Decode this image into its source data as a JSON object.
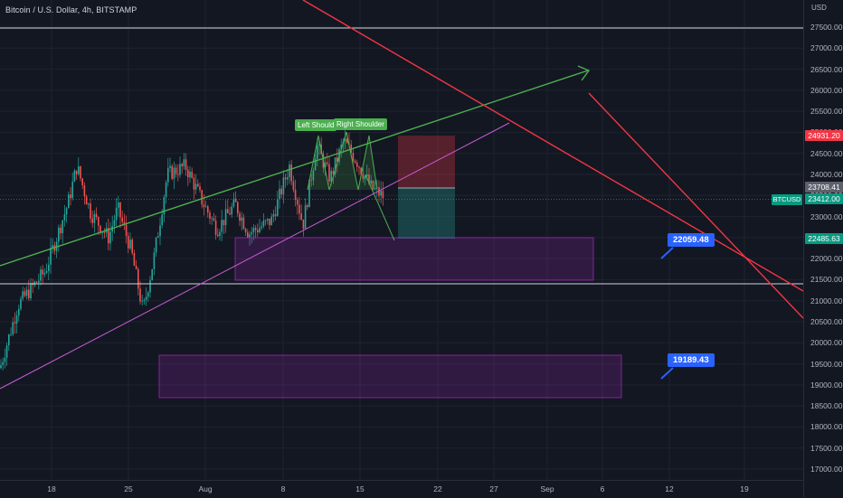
{
  "symbol": {
    "title": "Bitcoin / U.S. Dollar, 4h, BITSTAMP",
    "ticker": "BTCUSD"
  },
  "axis": {
    "currency": "USD",
    "y_ticks": [
      "27500.00",
      "27000.00",
      "26500.00",
      "26000.00",
      "25500.00",
      "25000.00",
      "24500.00",
      "24000.00",
      "23500.00",
      "23000.00",
      "22500.00",
      "22000.00",
      "21500.00",
      "21000.00",
      "20500.00",
      "20000.00",
      "19500.00",
      "19000.00",
      "18500.00",
      "18000.00",
      "17500.00",
      "17000.00"
    ],
    "x_ticks": [
      "18",
      "25",
      "Aug",
      "8",
      "15",
      "22",
      "27",
      "Sep",
      "6",
      "12",
      "19"
    ]
  },
  "price_badges": {
    "stop": {
      "text": "24931.20",
      "color": "#f23645"
    },
    "entry": {
      "text": "23708.41",
      "color": "#5d606b"
    },
    "last": {
      "text": "23412.00",
      "color": "#089981"
    },
    "target": {
      "text": "22485.63",
      "color": "#089981"
    }
  },
  "callouts": {
    "upper": "22059.48",
    "lower": "19189.43"
  },
  "pattern_labels": {
    "left": "Left Should",
    "right": "Right Shoulder"
  },
  "colors": {
    "background": "#131722",
    "up": "#26a69a",
    "down": "#ef5350",
    "trend_green": "#4caf50",
    "trend_red": "#f23645",
    "zone": "#9c27b0",
    "callout": "#2962ff"
  }
}
